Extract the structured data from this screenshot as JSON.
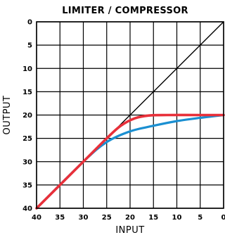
{
  "chart_data": {
    "type": "line",
    "title": "LIMITER / COMPRESSOR",
    "xlabel": "INPUT",
    "ylabel": "OUTPUT",
    "x_ticks": [
      "40",
      "35",
      "30",
      "25",
      "20",
      "15",
      "10",
      "5",
      "0"
    ],
    "y_ticks": [
      "0",
      "5",
      "10",
      "15",
      "20",
      "25",
      "30",
      "35",
      "40"
    ],
    "xlim": [
      40,
      0
    ],
    "ylim": [
      0,
      40
    ],
    "grid": true,
    "series": [
      {
        "color": "#1a8fd1",
        "x": [
          40,
          30,
          25,
          20,
          15,
          10,
          5,
          0
        ],
        "y": [
          40,
          30,
          25.8,
          23.5,
          22.3,
          21.3,
          20.6,
          20
        ]
      },
      {
        "color": "#e8303a",
        "x": [
          40,
          30,
          25,
          22,
          19,
          16,
          12,
          5,
          0
        ],
        "y": [
          40,
          30,
          25,
          22.3,
          20.7,
          20.1,
          20,
          20,
          20
        ]
      },
      {
        "color": "#000000",
        "x": [
          40,
          0
        ],
        "y": [
          40,
          0
        ]
      }
    ]
  }
}
